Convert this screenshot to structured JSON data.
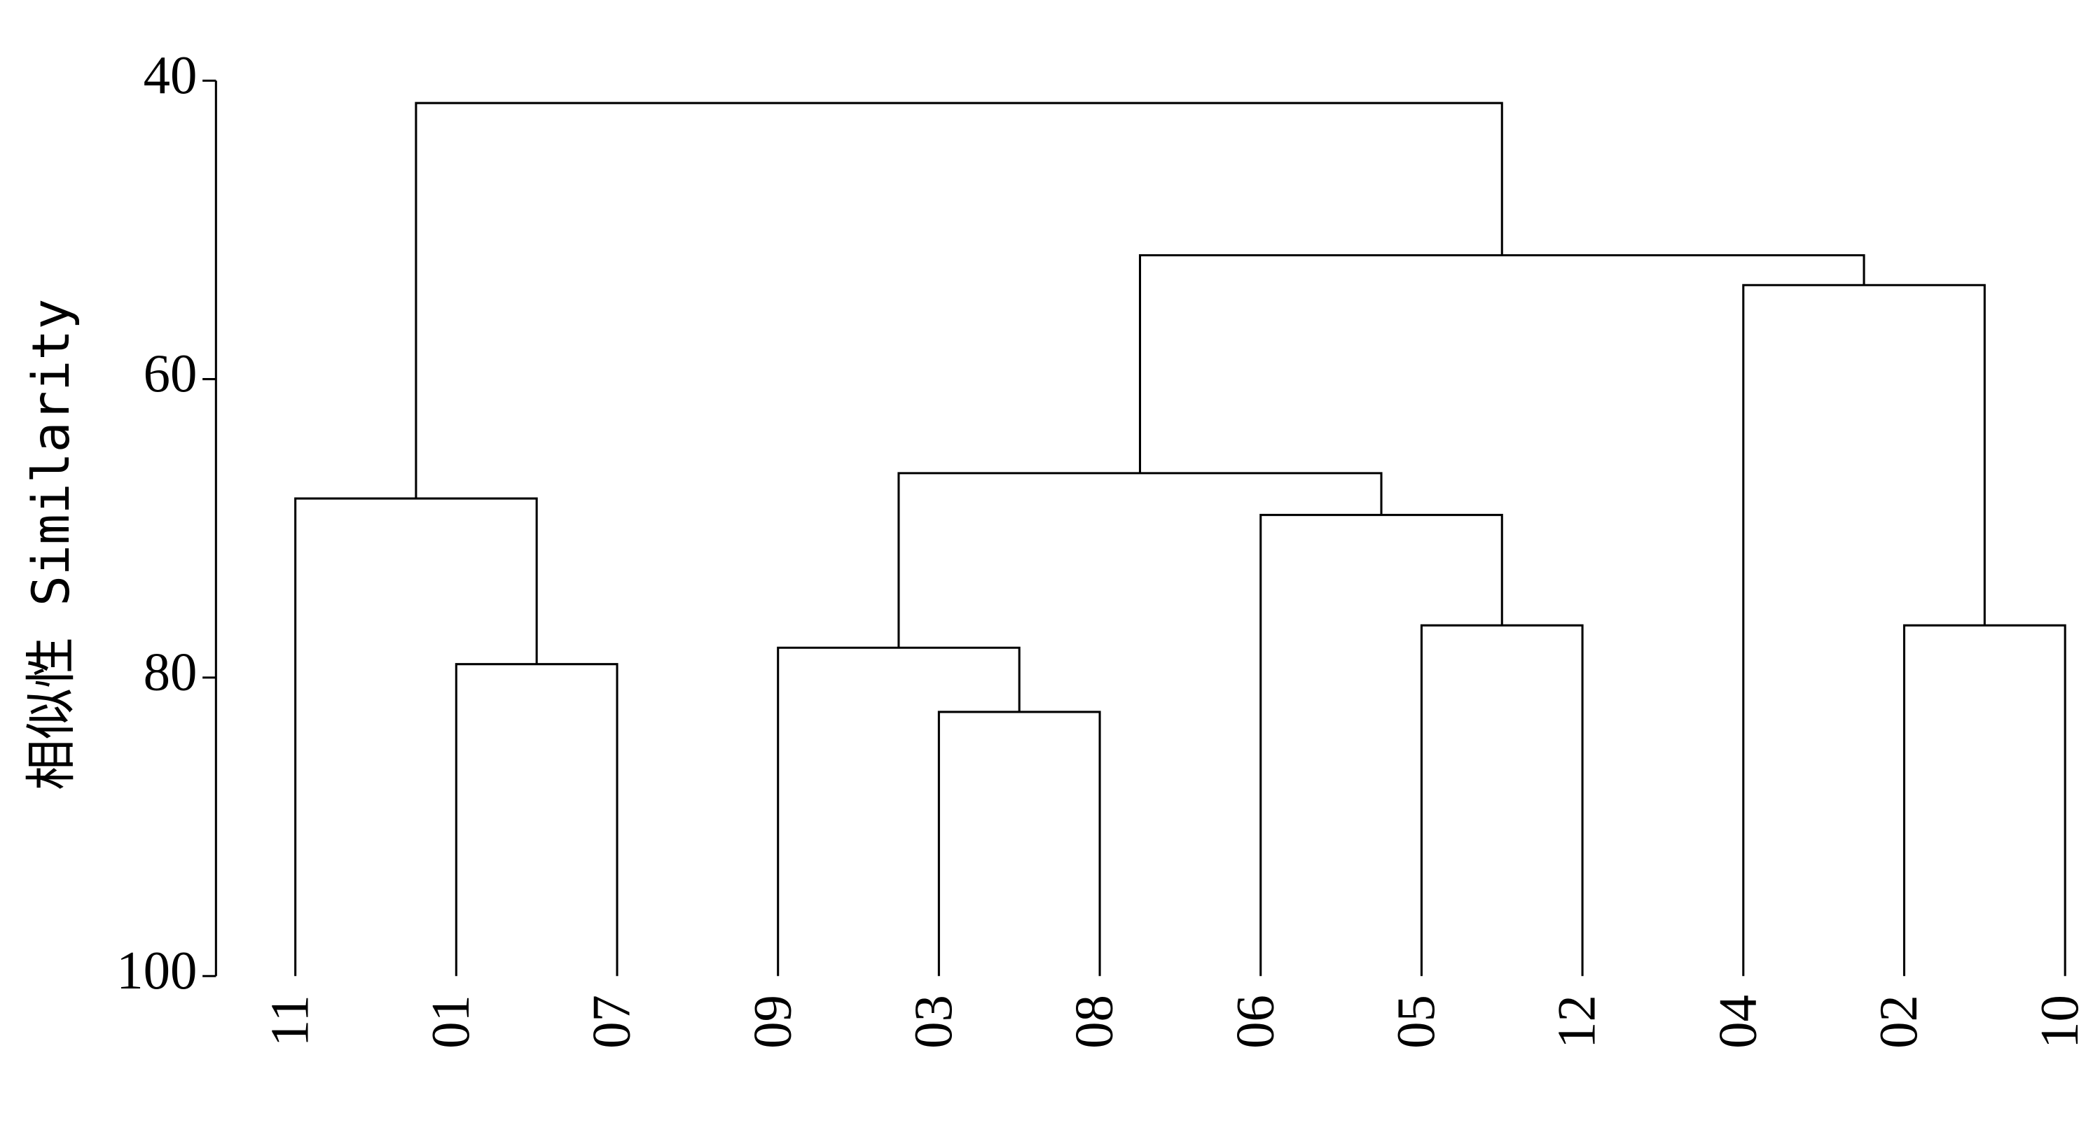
{
  "chart_data": {
    "type": "dendrogram",
    "y_label": "相似性 Similarity",
    "leaves": [
      "11",
      "01",
      "07",
      "09",
      "03",
      "08",
      "06",
      "05",
      "12",
      "04",
      "02",
      "10"
    ],
    "merges": [
      {
        "children": [
          1,
          2
        ],
        "height": 79.1
      },
      {
        "children": [
          0,
          12
        ],
        "height": 68
      },
      {
        "children": [
          4,
          5
        ],
        "height": 82.3
      },
      {
        "children": [
          3,
          14
        ],
        "height": 78
      },
      {
        "children": [
          7,
          8
        ],
        "height": 76.5
      },
      {
        "children": [
          6,
          16
        ],
        "height": 69.1
      },
      {
        "children": [
          15,
          17
        ],
        "height": 66.3
      },
      {
        "children": [
          10,
          11
        ],
        "height": 76.5
      },
      {
        "children": [
          9,
          19
        ],
        "height": 53.7
      },
      {
        "children": [
          18,
          20
        ],
        "height": 51.7
      },
      {
        "children": [
          13,
          21
        ],
        "height": 41.5
      }
    ],
    "ylim": [
      40,
      100
    ],
    "yticks": [
      40,
      60,
      80,
      100
    ]
  }
}
